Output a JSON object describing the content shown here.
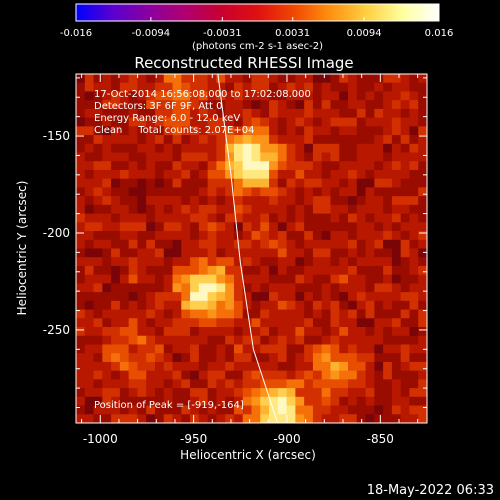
{
  "colorbar": {
    "tick_labels": [
      "-0.016",
      "-0.0094",
      "-0.0031",
      "0.0031",
      "0.0094",
      "0.016"
    ],
    "tick_values": [
      -0.016,
      -0.0094,
      -0.0031,
      0.0031,
      0.0094,
      0.016
    ],
    "units_label": "(photons cm-2 s-1 asec-2)",
    "colors": [
      "#0000ff",
      "#5a00d0",
      "#8a00a0",
      "#b00070",
      "#c80030",
      "#e01010",
      "#f04800",
      "#ff9010",
      "#ffd040",
      "#ffffa0",
      "#ffffff"
    ]
  },
  "header": {
    "title": "Reconstructed RHESSI Image"
  },
  "info": {
    "line1": "17-Oct-2014 16:56:08.000 to 17:02:08.000",
    "line2": "Detectors: 3F 6F 9F, Att 0",
    "line3": "Energy Range: 6.0 - 12.0 keV",
    "line4": "Clean     Total counts: 2.07E+04"
  },
  "peak_label": "Position of Peak = [-919,-164]",
  "footer": {
    "timestamp": "18-May-2022 06:33"
  },
  "chart_data": {
    "type": "heatmap",
    "title": "Reconstructed RHESSI Image",
    "xlabel": "Heliocentric X (arcsec)",
    "ylabel": "Heliocentric Y (arcsec)",
    "xlim": [
      -1013,
      -825
    ],
    "ylim": [
      -298,
      -118
    ],
    "x_ticks": [
      -1000,
      -950,
      -900,
      -850
    ],
    "x_tick_labels": [
      "-1000",
      "-950",
      "-900",
      "-850"
    ],
    "y_ticks": [
      -150,
      -200,
      -250
    ],
    "y_tick_labels": [
      "-150",
      "-200",
      "-250"
    ],
    "grid": false,
    "colorbar_range": [
      -0.016,
      0.016
    ],
    "peak": [
      -919,
      -164
    ],
    "sources": [
      {
        "x": -919,
        "y": -164,
        "relative_intensity": 1.0
      },
      {
        "x": -943,
        "y": -230,
        "relative_intensity": 0.85
      },
      {
        "x": -905,
        "y": -292,
        "relative_intensity": 0.9
      },
      {
        "x": -960,
        "y": -128,
        "relative_intensity": 0.3
      },
      {
        "x": -875,
        "y": -270,
        "relative_intensity": 0.35
      },
      {
        "x": -985,
        "y": -262,
        "relative_intensity": 0.25
      }
    ],
    "limb_curve": [
      [
        -937,
        -118
      ],
      [
        -930,
        -170
      ],
      [
        -925,
        -215
      ],
      [
        -918,
        -260
      ],
      [
        -905,
        -298
      ]
    ]
  }
}
